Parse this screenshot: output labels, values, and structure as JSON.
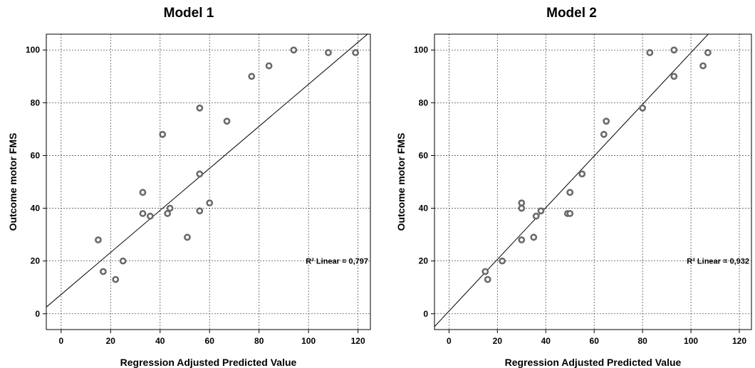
{
  "chart_data": [
    {
      "type": "scatter",
      "title": "Model 1",
      "xlabel": "Regression Adjusted Predicted Value",
      "ylabel": "Outcome motor FMS",
      "xlim": [
        -6,
        125
      ],
      "ylim": [
        -6,
        106
      ],
      "xticks": [
        0,
        20,
        40,
        60,
        80,
        100,
        120
      ],
      "yticks": [
        0,
        20,
        40,
        60,
        80,
        100
      ],
      "grid": true,
      "fit_line": {
        "slope": 0.797,
        "intercept": 7.3
      },
      "annotation": "R² Linear = 0,797",
      "points": [
        {
          "x": 15,
          "y": 28
        },
        {
          "x": 17,
          "y": 16
        },
        {
          "x": 22,
          "y": 13
        },
        {
          "x": 25,
          "y": 20
        },
        {
          "x": 33,
          "y": 38
        },
        {
          "x": 33,
          "y": 46
        },
        {
          "x": 36,
          "y": 37
        },
        {
          "x": 41,
          "y": 68
        },
        {
          "x": 43,
          "y": 38
        },
        {
          "x": 44,
          "y": 40
        },
        {
          "x": 51,
          "y": 29
        },
        {
          "x": 56,
          "y": 39
        },
        {
          "x": 56,
          "y": 53
        },
        {
          "x": 56,
          "y": 78
        },
        {
          "x": 60,
          "y": 42
        },
        {
          "x": 67,
          "y": 73
        },
        {
          "x": 77,
          "y": 90
        },
        {
          "x": 84,
          "y": 94
        },
        {
          "x": 94,
          "y": 100
        },
        {
          "x": 108,
          "y": 99
        },
        {
          "x": 119,
          "y": 99
        }
      ]
    },
    {
      "type": "scatter",
      "title": "Model 2",
      "xlabel": "Regression Adjusted Predicted Value",
      "ylabel": "Outcome motor FMS",
      "xlim": [
        -6,
        125
      ],
      "ylim": [
        -6,
        106
      ],
      "xticks": [
        0,
        20,
        40,
        60,
        80,
        100,
        120
      ],
      "yticks": [
        0,
        20,
        40,
        60,
        80,
        100
      ],
      "grid": true,
      "fit_line": {
        "slope": 0.98,
        "intercept": 1
      },
      "annotation": "R² Linear = 0,932",
      "points": [
        {
          "x": 15,
          "y": 16
        },
        {
          "x": 16,
          "y": 13
        },
        {
          "x": 22,
          "y": 20
        },
        {
          "x": 30,
          "y": 28
        },
        {
          "x": 30,
          "y": 40
        },
        {
          "x": 30,
          "y": 42
        },
        {
          "x": 35,
          "y": 29
        },
        {
          "x": 36,
          "y": 37
        },
        {
          "x": 38,
          "y": 39
        },
        {
          "x": 49,
          "y": 38
        },
        {
          "x": 50,
          "y": 38
        },
        {
          "x": 50,
          "y": 46
        },
        {
          "x": 55,
          "y": 53
        },
        {
          "x": 64,
          "y": 68
        },
        {
          "x": 65,
          "y": 73
        },
        {
          "x": 80,
          "y": 78
        },
        {
          "x": 83,
          "y": 99
        },
        {
          "x": 93,
          "y": 90
        },
        {
          "x": 93,
          "y": 100
        },
        {
          "x": 105,
          "y": 94
        },
        {
          "x": 107,
          "y": 99
        }
      ]
    }
  ]
}
